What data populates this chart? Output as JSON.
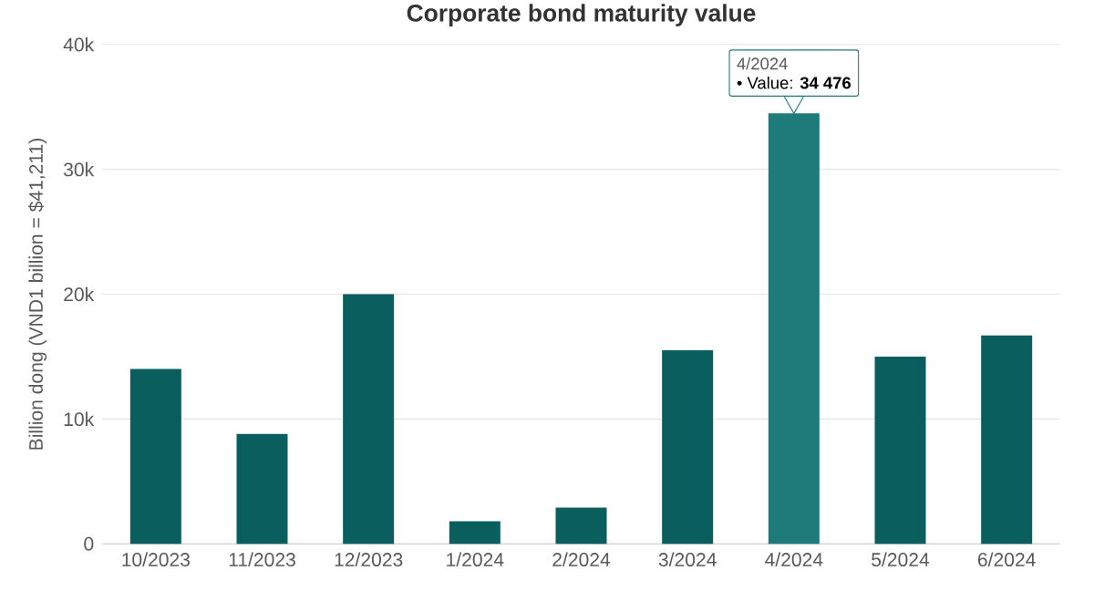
{
  "chart_data": {
    "type": "bar",
    "title": "Corporate bond maturity value",
    "ylabel": "Billion dong (VND1 billion = $41,211)",
    "categories": [
      "10/2023",
      "11/2023",
      "12/2023",
      "1/2024",
      "2/2024",
      "3/2024",
      "4/2024",
      "5/2024",
      "6/2024"
    ],
    "values": [
      14000,
      8800,
      20000,
      1800,
      2900,
      15500,
      34476,
      15000,
      16700
    ],
    "colors": [
      "#0b5e5e",
      "#0b5e5e",
      "#0b5e5e",
      "#0b5e5e",
      "#0b5e5e",
      "#0b5e5e",
      "#1f7a7a",
      "#0b5e5e",
      "#0b5e5e"
    ],
    "ylim": [
      0,
      40000
    ],
    "yticks": [
      {
        "value": 0,
        "label": "0"
      },
      {
        "value": 10000,
        "label": "10k"
      },
      {
        "value": 20000,
        "label": "20k"
      },
      {
        "value": 30000,
        "label": "30k"
      },
      {
        "value": 40000,
        "label": "40k"
      }
    ],
    "grid": "y",
    "annotations": [
      "4/2024",
      {
        "text": "• Value: **34 476**",
        "x": "4/2024",
        "y": 34476
      }
    ]
  }
}
